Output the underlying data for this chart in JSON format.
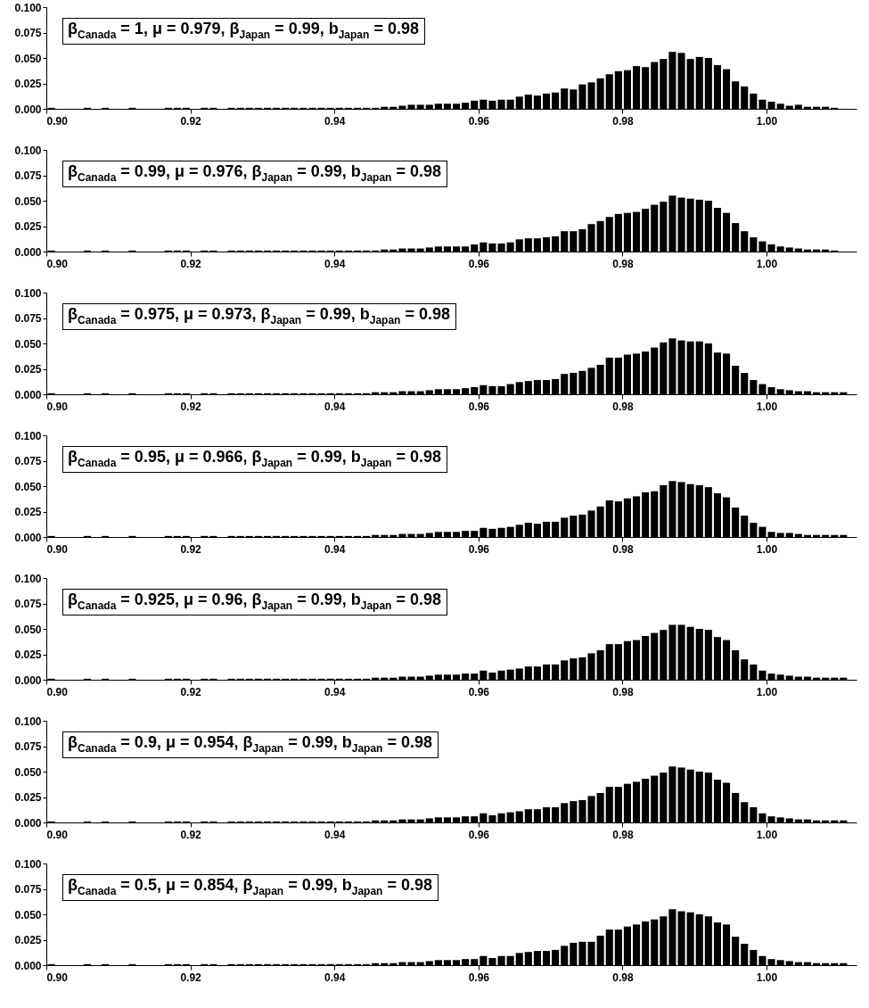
{
  "chart_data": [
    {
      "type": "histogram",
      "title": "β$_{Canada}$ = 1, μ = 0.979, β$_{Japan}$ = 0.99, b$_{Japan}$ = 0.98",
      "color": "#000000",
      "xlim": [
        0.9,
        1.0125
      ],
      "xticks": [
        {
          "value": 0.9,
          "label": "0.90"
        },
        {
          "value": 0.92,
          "label": "0.92"
        },
        {
          "value": 0.94,
          "label": "0.94"
        },
        {
          "value": 0.96,
          "label": "0.96"
        },
        {
          "value": 0.98,
          "label": "0.98"
        },
        {
          "value": 1.0,
          "label": "1.00"
        }
      ],
      "ylim": [
        0,
        0.1
      ],
      "yticks": [
        {
          "value": 0,
          "label": "0.000"
        },
        {
          "value": 0.025,
          "label": "0.025"
        },
        {
          "value": 0.05,
          "label": "0.050"
        },
        {
          "value": 0.075,
          "label": "0.075"
        },
        {
          "value": 0.1,
          "label": "0.100"
        }
      ],
      "bins": [
        0.9,
        0.90125,
        0.9025,
        0.90375,
        0.905,
        0.90625,
        0.9075,
        0.90875,
        0.91,
        0.91125,
        0.9125,
        0.91375,
        0.915,
        0.91625,
        0.9175,
        0.91875,
        0.92,
        0.92125,
        0.9225,
        0.92375,
        0.925,
        0.92625,
        0.9275,
        0.92875,
        0.93,
        0.93125,
        0.9325,
        0.93375,
        0.935,
        0.93625,
        0.9375,
        0.93875,
        0.94,
        0.94125,
        0.9425,
        0.94375,
        0.945,
        0.94625,
        0.9475,
        0.94875,
        0.95,
        0.95125,
        0.9525,
        0.95375,
        0.955,
        0.95625,
        0.9575,
        0.95875,
        0.96,
        0.96125,
        0.9625,
        0.96375,
        0.965,
        0.96625,
        0.9675,
        0.96875,
        0.97,
        0.97125,
        0.9725,
        0.97375,
        0.975,
        0.97625,
        0.9775,
        0.97875,
        0.98,
        0.98125,
        0.9825,
        0.98375,
        0.985,
        0.98625,
        0.9875,
        0.98875,
        0.99,
        0.99125,
        0.9925,
        0.99375,
        0.995,
        0.99625,
        0.9975,
        0.99875,
        1.0,
        1.00125,
        1.0025,
        1.00375,
        1.005,
        1.00625,
        1.0075,
        1.00875,
        1.01,
        1.01125,
        1.0125
      ],
      "values": [
        0.001,
        0,
        0,
        0,
        0.001,
        0,
        0.001,
        0,
        0,
        0.001,
        0,
        0,
        0,
        0.001,
        0.001,
        0.001,
        0,
        0.001,
        0.001,
        0,
        0.001,
        0.001,
        0.001,
        0.001,
        0.001,
        0.001,
        0.001,
        0.001,
        0.001,
        0.001,
        0.001,
        0.001,
        0.001,
        0.001,
        0.001,
        0.001,
        0.001,
        0.002,
        0.002,
        0.003,
        0.004,
        0.004,
        0.004,
        0.005,
        0.005,
        0.005,
        0.006,
        0.008,
        0.009,
        0.008,
        0.009,
        0.009,
        0.012,
        0.014,
        0.013,
        0.015,
        0.016,
        0.02,
        0.019,
        0.024,
        0.026,
        0.03,
        0.034,
        0.037,
        0.038,
        0.042,
        0.041,
        0.046,
        0.049,
        0.056,
        0.055,
        0.049,
        0.051,
        0.05,
        0.043,
        0.039,
        0.027,
        0.022,
        0.015,
        0.009,
        0.007,
        0.005,
        0.003,
        0.004,
        0.002,
        0.002,
        0.002,
        0.001,
        0,
        0
      ]
    },
    {
      "type": "histogram",
      "title": "β$_{Canada}$ = 0.99, μ = 0.976, β$_{Japan}$ = 0.99, b$_{Japan}$ = 0.98",
      "color": "#000000",
      "xlim": [
        0.9,
        1.0125
      ],
      "xticks": [
        {
          "value": 0.9,
          "label": "0.90"
        },
        {
          "value": 0.92,
          "label": "0.92"
        },
        {
          "value": 0.94,
          "label": "0.94"
        },
        {
          "value": 0.96,
          "label": "0.96"
        },
        {
          "value": 0.98,
          "label": "0.98"
        },
        {
          "value": 1.0,
          "label": "1.00"
        }
      ],
      "ylim": [
        0,
        0.1
      ],
      "yticks": [
        {
          "value": 0,
          "label": "0.000"
        },
        {
          "value": 0.025,
          "label": "0.025"
        },
        {
          "value": 0.05,
          "label": "0.050"
        },
        {
          "value": 0.075,
          "label": "0.075"
        },
        {
          "value": 0.1,
          "label": "0.100"
        }
      ],
      "bins": [
        0.9,
        0.90125,
        0.9025,
        0.90375,
        0.905,
        0.90625,
        0.9075,
        0.90875,
        0.91,
        0.91125,
        0.9125,
        0.91375,
        0.915,
        0.91625,
        0.9175,
        0.91875,
        0.92,
        0.92125,
        0.9225,
        0.92375,
        0.925,
        0.92625,
        0.9275,
        0.92875,
        0.93,
        0.93125,
        0.9325,
        0.93375,
        0.935,
        0.93625,
        0.9375,
        0.93875,
        0.94,
        0.94125,
        0.9425,
        0.94375,
        0.945,
        0.94625,
        0.9475,
        0.94875,
        0.95,
        0.95125,
        0.9525,
        0.95375,
        0.955,
        0.95625,
        0.9575,
        0.95875,
        0.96,
        0.96125,
        0.9625,
        0.96375,
        0.965,
        0.96625,
        0.9675,
        0.96875,
        0.97,
        0.97125,
        0.9725,
        0.97375,
        0.975,
        0.97625,
        0.9775,
        0.97875,
        0.98,
        0.98125,
        0.9825,
        0.98375,
        0.985,
        0.98625,
        0.9875,
        0.98875,
        0.99,
        0.99125,
        0.9925,
        0.99375,
        0.995,
        0.99625,
        0.9975,
        0.99875,
        1.0,
        1.00125,
        1.0025,
        1.00375,
        1.005,
        1.00625,
        1.0075,
        1.00875,
        1.01,
        1.01125,
        1.0125
      ],
      "values": [
        0.001,
        0,
        0,
        0,
        0.001,
        0,
        0.001,
        0,
        0,
        0.001,
        0,
        0,
        0,
        0.001,
        0.001,
        0.001,
        0,
        0.001,
        0.001,
        0,
        0.001,
        0.001,
        0.001,
        0.001,
        0.001,
        0.001,
        0.001,
        0.001,
        0.001,
        0.001,
        0.001,
        0.001,
        0.001,
        0.001,
        0.001,
        0.001,
        0.001,
        0.002,
        0.002,
        0.003,
        0.003,
        0.003,
        0.004,
        0.005,
        0.005,
        0.005,
        0.005,
        0.007,
        0.009,
        0.008,
        0.008,
        0.009,
        0.012,
        0.013,
        0.013,
        0.014,
        0.015,
        0.02,
        0.02,
        0.022,
        0.027,
        0.03,
        0.034,
        0.037,
        0.038,
        0.039,
        0.042,
        0.046,
        0.049,
        0.055,
        0.053,
        0.052,
        0.051,
        0.05,
        0.043,
        0.038,
        0.028,
        0.02,
        0.014,
        0.01,
        0.007,
        0.005,
        0.004,
        0.003,
        0.002,
        0.002,
        0.002,
        0.001,
        0,
        0
      ]
    },
    {
      "type": "histogram",
      "title": "β$_{Canada}$ = 0.975, μ = 0.973, β$_{Japan}$ = 0.99, b$_{Japan}$ = 0.98",
      "color": "#000000",
      "xlim": [
        0.9,
        1.0125
      ],
      "xticks": [
        {
          "value": 0.9,
          "label": "0.90"
        },
        {
          "value": 0.92,
          "label": "0.92"
        },
        {
          "value": 0.94,
          "label": "0.94"
        },
        {
          "value": 0.96,
          "label": "0.96"
        },
        {
          "value": 0.98,
          "label": "0.98"
        },
        {
          "value": 1.0,
          "label": "1.00"
        }
      ],
      "ylim": [
        0,
        0.1
      ],
      "yticks": [
        {
          "value": 0,
          "label": "0.000"
        },
        {
          "value": 0.025,
          "label": "0.025"
        },
        {
          "value": 0.05,
          "label": "0.050"
        },
        {
          "value": 0.075,
          "label": "0.075"
        },
        {
          "value": 0.1,
          "label": "0.100"
        }
      ],
      "bins": [
        0.9,
        0.90125,
        0.9025,
        0.90375,
        0.905,
        0.90625,
        0.9075,
        0.90875,
        0.91,
        0.91125,
        0.9125,
        0.91375,
        0.915,
        0.91625,
        0.9175,
        0.91875,
        0.92,
        0.92125,
        0.9225,
        0.92375,
        0.925,
        0.92625,
        0.9275,
        0.92875,
        0.93,
        0.93125,
        0.9325,
        0.93375,
        0.935,
        0.93625,
        0.9375,
        0.93875,
        0.94,
        0.94125,
        0.9425,
        0.94375,
        0.945,
        0.94625,
        0.9475,
        0.94875,
        0.95,
        0.95125,
        0.9525,
        0.95375,
        0.955,
        0.95625,
        0.9575,
        0.95875,
        0.96,
        0.96125,
        0.9625,
        0.96375,
        0.965,
        0.96625,
        0.9675,
        0.96875,
        0.97,
        0.97125,
        0.9725,
        0.97375,
        0.975,
        0.97625,
        0.9775,
        0.97875,
        0.98,
        0.98125,
        0.9825,
        0.98375,
        0.985,
        0.98625,
        0.9875,
        0.98875,
        0.99,
        0.99125,
        0.9925,
        0.99375,
        0.995,
        0.99625,
        0.9975,
        0.99875,
        1.0,
        1.00125,
        1.0025,
        1.00375,
        1.005,
        1.00625,
        1.0075,
        1.00875,
        1.01,
        1.01125,
        1.0125
      ],
      "values": [
        0.001,
        0,
        0,
        0,
        0.001,
        0,
        0.001,
        0,
        0,
        0.001,
        0,
        0,
        0,
        0.001,
        0.001,
        0.001,
        0,
        0.001,
        0.001,
        0,
        0.001,
        0.001,
        0.001,
        0.001,
        0.001,
        0.001,
        0.001,
        0.001,
        0.001,
        0.001,
        0.001,
        0.001,
        0.001,
        0.001,
        0.001,
        0.001,
        0.002,
        0.002,
        0.002,
        0.003,
        0.003,
        0.003,
        0.004,
        0.005,
        0.005,
        0.005,
        0.006,
        0.007,
        0.009,
        0.008,
        0.008,
        0.01,
        0.012,
        0.013,
        0.014,
        0.014,
        0.015,
        0.02,
        0.021,
        0.023,
        0.026,
        0.029,
        0.036,
        0.036,
        0.039,
        0.04,
        0.042,
        0.046,
        0.051,
        0.055,
        0.053,
        0.052,
        0.052,
        0.05,
        0.041,
        0.04,
        0.028,
        0.021,
        0.014,
        0.01,
        0.007,
        0.005,
        0.004,
        0.003,
        0.003,
        0.002,
        0.002,
        0.002,
        0.002,
        0
      ]
    },
    {
      "type": "histogram",
      "title": "β$_{Canada}$ = 0.95, μ = 0.966, β$_{Japan}$ = 0.99, b$_{Japan}$ = 0.98",
      "color": "#000000",
      "xlim": [
        0.9,
        1.0125
      ],
      "xticks": [
        {
          "value": 0.9,
          "label": "0.90"
        },
        {
          "value": 0.92,
          "label": "0.92"
        },
        {
          "value": 0.94,
          "label": "0.94"
        },
        {
          "value": 0.96,
          "label": "0.96"
        },
        {
          "value": 0.98,
          "label": "0.98"
        },
        {
          "value": 1.0,
          "label": "1.00"
        }
      ],
      "ylim": [
        0,
        0.1
      ],
      "yticks": [
        {
          "value": 0,
          "label": "0.000"
        },
        {
          "value": 0.025,
          "label": "0.025"
        },
        {
          "value": 0.05,
          "label": "0.050"
        },
        {
          "value": 0.075,
          "label": "0.075"
        },
        {
          "value": 0.1,
          "label": "0.100"
        }
      ],
      "bins": [
        0.9,
        0.90125,
        0.9025,
        0.90375,
        0.905,
        0.90625,
        0.9075,
        0.90875,
        0.91,
        0.91125,
        0.9125,
        0.91375,
        0.915,
        0.91625,
        0.9175,
        0.91875,
        0.92,
        0.92125,
        0.9225,
        0.92375,
        0.925,
        0.92625,
        0.9275,
        0.92875,
        0.93,
        0.93125,
        0.9325,
        0.93375,
        0.935,
        0.93625,
        0.9375,
        0.93875,
        0.94,
        0.94125,
        0.9425,
        0.94375,
        0.945,
        0.94625,
        0.9475,
        0.94875,
        0.95,
        0.95125,
        0.9525,
        0.95375,
        0.955,
        0.95625,
        0.9575,
        0.95875,
        0.96,
        0.96125,
        0.9625,
        0.96375,
        0.965,
        0.96625,
        0.9675,
        0.96875,
        0.97,
        0.97125,
        0.9725,
        0.97375,
        0.975,
        0.97625,
        0.9775,
        0.97875,
        0.98,
        0.98125,
        0.9825,
        0.98375,
        0.985,
        0.98625,
        0.9875,
        0.98875,
        0.99,
        0.99125,
        0.9925,
        0.99375,
        0.995,
        0.99625,
        0.9975,
        0.99875,
        1.0,
        1.00125,
        1.0025,
        1.00375,
        1.005,
        1.00625,
        1.0075,
        1.00875,
        1.01,
        1.01125,
        1.0125
      ],
      "values": [
        0.001,
        0,
        0,
        0,
        0.001,
        0,
        0.001,
        0,
        0,
        0.001,
        0,
        0,
        0,
        0.001,
        0.001,
        0.001,
        0,
        0.001,
        0.001,
        0,
        0.001,
        0.001,
        0.001,
        0.001,
        0.001,
        0.001,
        0.001,
        0.001,
        0.001,
        0.001,
        0.001,
        0.001,
        0.001,
        0.001,
        0.001,
        0.001,
        0.002,
        0.002,
        0.002,
        0.003,
        0.003,
        0.003,
        0.004,
        0.005,
        0.005,
        0.005,
        0.006,
        0.006,
        0.009,
        0.008,
        0.009,
        0.01,
        0.012,
        0.014,
        0.013,
        0.015,
        0.015,
        0.019,
        0.021,
        0.022,
        0.026,
        0.03,
        0.036,
        0.035,
        0.038,
        0.04,
        0.044,
        0.045,
        0.051,
        0.055,
        0.054,
        0.052,
        0.051,
        0.049,
        0.043,
        0.039,
        0.029,
        0.021,
        0.014,
        0.01,
        0.005,
        0.004,
        0.004,
        0.003,
        0.002,
        0.002,
        0.002,
        0.002,
        0.002,
        0
      ]
    },
    {
      "type": "histogram",
      "title": "β$_{Canada}$ = 0.925, μ = 0.96, β$_{Japan}$ = 0.99, b$_{Japan}$ = 0.98",
      "color": "#000000",
      "xlim": [
        0.9,
        1.0125
      ],
      "xticks": [
        {
          "value": 0.9,
          "label": "0.90"
        },
        {
          "value": 0.92,
          "label": "0.92"
        },
        {
          "value": 0.94,
          "label": "0.94"
        },
        {
          "value": 0.96,
          "label": "0.96"
        },
        {
          "value": 0.98,
          "label": "0.98"
        },
        {
          "value": 1.0,
          "label": "1.00"
        }
      ],
      "ylim": [
        0,
        0.1
      ],
      "yticks": [
        {
          "value": 0,
          "label": "0.000"
        },
        {
          "value": 0.025,
          "label": "0.025"
        },
        {
          "value": 0.05,
          "label": "0.050"
        },
        {
          "value": 0.075,
          "label": "0.075"
        },
        {
          "value": 0.1,
          "label": "0.100"
        }
      ],
      "bins": [
        0.9,
        0.90125,
        0.9025,
        0.90375,
        0.905,
        0.90625,
        0.9075,
        0.90875,
        0.91,
        0.91125,
        0.9125,
        0.91375,
        0.915,
        0.91625,
        0.9175,
        0.91875,
        0.92,
        0.92125,
        0.9225,
        0.92375,
        0.925,
        0.92625,
        0.9275,
        0.92875,
        0.93,
        0.93125,
        0.9325,
        0.93375,
        0.935,
        0.93625,
        0.9375,
        0.93875,
        0.94,
        0.94125,
        0.9425,
        0.94375,
        0.945,
        0.94625,
        0.9475,
        0.94875,
        0.95,
        0.95125,
        0.9525,
        0.95375,
        0.955,
        0.95625,
        0.9575,
        0.95875,
        0.96,
        0.96125,
        0.9625,
        0.96375,
        0.965,
        0.96625,
        0.9675,
        0.96875,
        0.97,
        0.97125,
        0.9725,
        0.97375,
        0.975,
        0.97625,
        0.9775,
        0.97875,
        0.98,
        0.98125,
        0.9825,
        0.98375,
        0.985,
        0.98625,
        0.9875,
        0.98875,
        0.99,
        0.99125,
        0.9925,
        0.99375,
        0.995,
        0.99625,
        0.9975,
        0.99875,
        1.0,
        1.00125,
        1.0025,
        1.00375,
        1.005,
        1.00625,
        1.0075,
        1.00875,
        1.01,
        1.01125,
        1.0125
      ],
      "values": [
        0.001,
        0,
        0,
        0,
        0.001,
        0,
        0.001,
        0,
        0,
        0.001,
        0,
        0,
        0,
        0.001,
        0.001,
        0.001,
        0,
        0.001,
        0.001,
        0,
        0.001,
        0.001,
        0.001,
        0.001,
        0.001,
        0.001,
        0.001,
        0.001,
        0.001,
        0.001,
        0.001,
        0.001,
        0.001,
        0.001,
        0.001,
        0.001,
        0.002,
        0.002,
        0.002,
        0.003,
        0.003,
        0.003,
        0.004,
        0.005,
        0.005,
        0.005,
        0.006,
        0.006,
        0.009,
        0.007,
        0.009,
        0.01,
        0.011,
        0.013,
        0.013,
        0.015,
        0.015,
        0.019,
        0.021,
        0.022,
        0.026,
        0.029,
        0.035,
        0.035,
        0.038,
        0.039,
        0.043,
        0.046,
        0.049,
        0.054,
        0.054,
        0.052,
        0.05,
        0.049,
        0.042,
        0.039,
        0.029,
        0.02,
        0.015,
        0.009,
        0.006,
        0.005,
        0.004,
        0.003,
        0.003,
        0.002,
        0.002,
        0.002,
        0.002,
        0
      ]
    },
    {
      "type": "histogram",
      "title": "β$_{Canada}$ = 0.9, μ = 0.954, β$_{Japan}$ = 0.99, b$_{Japan}$ = 0.98",
      "color": "#000000",
      "xlim": [
        0.9,
        1.0125
      ],
      "xticks": [
        {
          "value": 0.9,
          "label": "0.90"
        },
        {
          "value": 0.92,
          "label": "0.92"
        },
        {
          "value": 0.94,
          "label": "0.94"
        },
        {
          "value": 0.96,
          "label": "0.96"
        },
        {
          "value": 0.98,
          "label": "0.98"
        },
        {
          "value": 1.0,
          "label": "1.00"
        }
      ],
      "ylim": [
        0,
        0.1
      ],
      "yticks": [
        {
          "value": 0,
          "label": "0.000"
        },
        {
          "value": 0.025,
          "label": "0.025"
        },
        {
          "value": 0.05,
          "label": "0.050"
        },
        {
          "value": 0.075,
          "label": "0.075"
        },
        {
          "value": 0.1,
          "label": "0.100"
        }
      ],
      "bins": [
        0.9,
        0.90125,
        0.9025,
        0.90375,
        0.905,
        0.90625,
        0.9075,
        0.90875,
        0.91,
        0.91125,
        0.9125,
        0.91375,
        0.915,
        0.91625,
        0.9175,
        0.91875,
        0.92,
        0.92125,
        0.9225,
        0.92375,
        0.925,
        0.92625,
        0.9275,
        0.92875,
        0.93,
        0.93125,
        0.9325,
        0.93375,
        0.935,
        0.93625,
        0.9375,
        0.93875,
        0.94,
        0.94125,
        0.9425,
        0.94375,
        0.945,
        0.94625,
        0.9475,
        0.94875,
        0.95,
        0.95125,
        0.9525,
        0.95375,
        0.955,
        0.95625,
        0.9575,
        0.95875,
        0.96,
        0.96125,
        0.9625,
        0.96375,
        0.965,
        0.96625,
        0.9675,
        0.96875,
        0.97,
        0.97125,
        0.9725,
        0.97375,
        0.975,
        0.97625,
        0.9775,
        0.97875,
        0.98,
        0.98125,
        0.9825,
        0.98375,
        0.985,
        0.98625,
        0.9875,
        0.98875,
        0.99,
        0.99125,
        0.9925,
        0.99375,
        0.995,
        0.99625,
        0.9975,
        0.99875,
        1.0,
        1.00125,
        1.0025,
        1.00375,
        1.005,
        1.00625,
        1.0075,
        1.00875,
        1.01,
        1.01125,
        1.0125
      ],
      "values": [
        0.001,
        0,
        0,
        0,
        0.001,
        0,
        0.001,
        0,
        0,
        0.001,
        0,
        0,
        0,
        0.001,
        0.001,
        0.001,
        0,
        0.001,
        0.001,
        0,
        0.001,
        0.001,
        0.001,
        0.001,
        0.001,
        0.001,
        0.001,
        0.001,
        0.001,
        0.001,
        0.001,
        0.001,
        0.001,
        0.001,
        0.001,
        0.001,
        0.002,
        0.002,
        0.002,
        0.003,
        0.003,
        0.003,
        0.004,
        0.005,
        0.005,
        0.005,
        0.006,
        0.006,
        0.009,
        0.007,
        0.009,
        0.01,
        0.011,
        0.013,
        0.013,
        0.015,
        0.015,
        0.019,
        0.021,
        0.022,
        0.026,
        0.029,
        0.035,
        0.035,
        0.038,
        0.04,
        0.043,
        0.046,
        0.049,
        0.055,
        0.054,
        0.052,
        0.05,
        0.049,
        0.042,
        0.039,
        0.029,
        0.02,
        0.015,
        0.009,
        0.006,
        0.005,
        0.004,
        0.003,
        0.003,
        0.002,
        0.002,
        0.002,
        0.002,
        0
      ]
    },
    {
      "type": "histogram",
      "title": "β$_{Canada}$ = 0.5, μ = 0.854, β$_{Japan}$ = 0.99, b$_{Japan}$ = 0.98",
      "color": "#000000",
      "xlim": [
        0.9,
        1.0125
      ],
      "xticks": [
        {
          "value": 0.9,
          "label": "0.90"
        },
        {
          "value": 0.92,
          "label": "0.92"
        },
        {
          "value": 0.94,
          "label": "0.94"
        },
        {
          "value": 0.96,
          "label": "0.96"
        },
        {
          "value": 0.98,
          "label": "0.98"
        },
        {
          "value": 1.0,
          "label": "1.00"
        }
      ],
      "ylim": [
        0,
        0.1
      ],
      "yticks": [
        {
          "value": 0,
          "label": "0.000"
        },
        {
          "value": 0.025,
          "label": "0.025"
        },
        {
          "value": 0.05,
          "label": "0.050"
        },
        {
          "value": 0.075,
          "label": "0.075"
        },
        {
          "value": 0.1,
          "label": "0.100"
        }
      ],
      "bins": [
        0.9,
        0.90125,
        0.9025,
        0.90375,
        0.905,
        0.90625,
        0.9075,
        0.90875,
        0.91,
        0.91125,
        0.9125,
        0.91375,
        0.915,
        0.91625,
        0.9175,
        0.91875,
        0.92,
        0.92125,
        0.9225,
        0.92375,
        0.925,
        0.92625,
        0.9275,
        0.92875,
        0.93,
        0.93125,
        0.9325,
        0.93375,
        0.935,
        0.93625,
        0.9375,
        0.93875,
        0.94,
        0.94125,
        0.9425,
        0.94375,
        0.945,
        0.94625,
        0.9475,
        0.94875,
        0.95,
        0.95125,
        0.9525,
        0.95375,
        0.955,
        0.95625,
        0.9575,
        0.95875,
        0.96,
        0.96125,
        0.9625,
        0.96375,
        0.965,
        0.96625,
        0.9675,
        0.96875,
        0.97,
        0.97125,
        0.9725,
        0.97375,
        0.975,
        0.97625,
        0.9775,
        0.97875,
        0.98,
        0.98125,
        0.9825,
        0.98375,
        0.985,
        0.98625,
        0.9875,
        0.98875,
        0.99,
        0.99125,
        0.9925,
        0.99375,
        0.995,
        0.99625,
        0.9975,
        0.99875,
        1.0,
        1.00125,
        1.0025,
        1.00375,
        1.005,
        1.00625,
        1.0075,
        1.00875,
        1.01,
        1.01125,
        1.0125
      ],
      "values": [
        0.001,
        0,
        0,
        0,
        0.001,
        0,
        0.001,
        0,
        0,
        0.001,
        0,
        0,
        0,
        0.001,
        0.001,
        0.001,
        0,
        0.001,
        0.001,
        0,
        0.001,
        0.001,
        0.001,
        0.001,
        0.001,
        0.001,
        0.001,
        0.001,
        0.001,
        0.001,
        0.001,
        0.001,
        0.001,
        0.001,
        0.001,
        0.001,
        0.002,
        0.002,
        0.002,
        0.003,
        0.003,
        0.003,
        0.004,
        0.005,
        0.005,
        0.005,
        0.006,
        0.006,
        0.009,
        0.007,
        0.009,
        0.009,
        0.012,
        0.013,
        0.014,
        0.014,
        0.015,
        0.019,
        0.022,
        0.023,
        0.023,
        0.029,
        0.035,
        0.035,
        0.038,
        0.04,
        0.043,
        0.045,
        0.048,
        0.055,
        0.053,
        0.052,
        0.05,
        0.048,
        0.042,
        0.04,
        0.028,
        0.021,
        0.015,
        0.009,
        0.006,
        0.005,
        0.004,
        0.003,
        0.003,
        0.002,
        0.002,
        0.002,
        0.002,
        0
      ]
    }
  ]
}
